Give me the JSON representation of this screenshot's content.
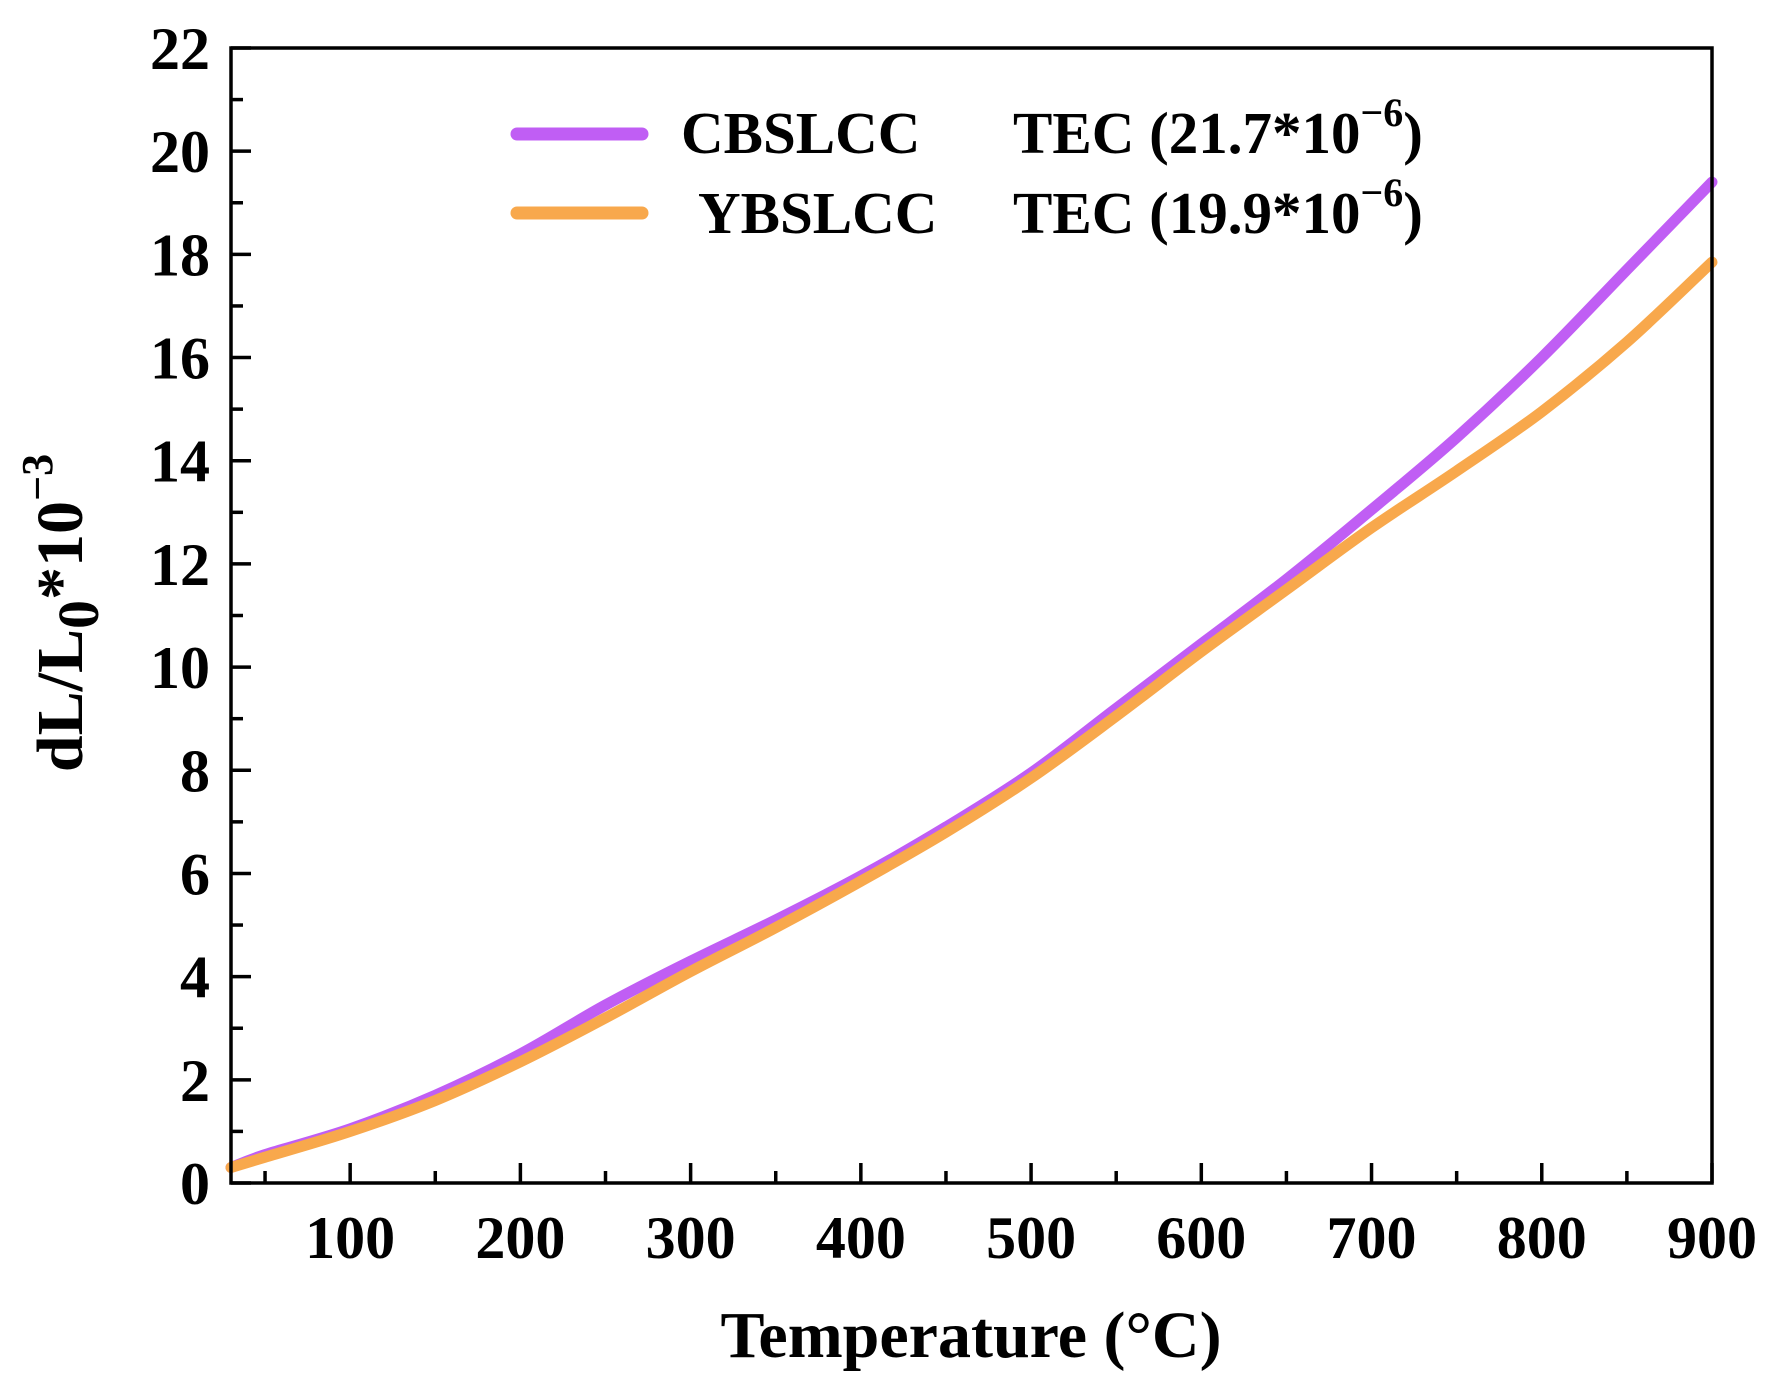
{
  "chart_data": {
    "type": "line",
    "title": "",
    "xlabel": "Temperature (°C)",
    "ylabel": {
      "main": "dL/L",
      "sub": "0",
      "mid": "*10",
      "sup": "−3"
    },
    "xlim": [
      30,
      900
    ],
    "ylim": [
      0,
      22
    ],
    "xticks": [
      100,
      200,
      300,
      400,
      500,
      600,
      700,
      800,
      900
    ],
    "yticks": [
      0,
      2,
      4,
      6,
      8,
      10,
      12,
      14,
      16,
      18,
      20,
      22
    ],
    "grid": false,
    "legend_position": "top-center",
    "series": [
      {
        "name": "CBSLCC",
        "tec": {
          "prefix": "TEC (21.7*10",
          "exponent": "−6",
          "suffix": ")"
        },
        "color": "#C05EF4",
        "x": [
          30,
          50,
          100,
          150,
          200,
          250,
          300,
          350,
          400,
          450,
          500,
          550,
          600,
          650,
          700,
          750,
          800,
          850,
          900
        ],
        "y": [
          0.3,
          0.55,
          1.05,
          1.7,
          2.5,
          3.45,
          4.3,
          5.1,
          5.95,
          6.9,
          7.95,
          9.2,
          10.45,
          11.7,
          13.05,
          14.45,
          16.0,
          17.7,
          19.4
        ]
      },
      {
        "name": "YBSLCC",
        "tec": {
          "prefix": "TEC (19.9*10",
          "exponent": "−6",
          "suffix": ")"
        },
        "color": "#F8A84C",
        "x": [
          30,
          50,
          100,
          150,
          200,
          250,
          300,
          350,
          400,
          450,
          500,
          550,
          600,
          650,
          700,
          750,
          800,
          850,
          900
        ],
        "y": [
          0.3,
          0.5,
          1.0,
          1.6,
          2.35,
          3.2,
          4.1,
          4.95,
          5.85,
          6.8,
          7.85,
          9.05,
          10.3,
          11.5,
          12.7,
          13.8,
          14.95,
          16.3,
          17.85
        ]
      }
    ]
  }
}
